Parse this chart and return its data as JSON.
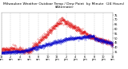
{
  "title": "Milwaukee Weather Outdoor Temp / Dew Point  by Minute  (24 Hours) (Alternate)",
  "bg_color": "#ffffff",
  "plot_bg_color": "#ffffff",
  "text_color": "#000000",
  "grid_color": "#aaaaaa",
  "temp_color": "#dd0000",
  "dew_color": "#0000cc",
  "ylim": [
    33,
    78
  ],
  "yticks": [
    35,
    40,
    45,
    50,
    55,
    60,
    65,
    70,
    75
  ],
  "num_points": 1440,
  "title_fontsize": 3.2,
  "tick_fontsize": 2.5
}
